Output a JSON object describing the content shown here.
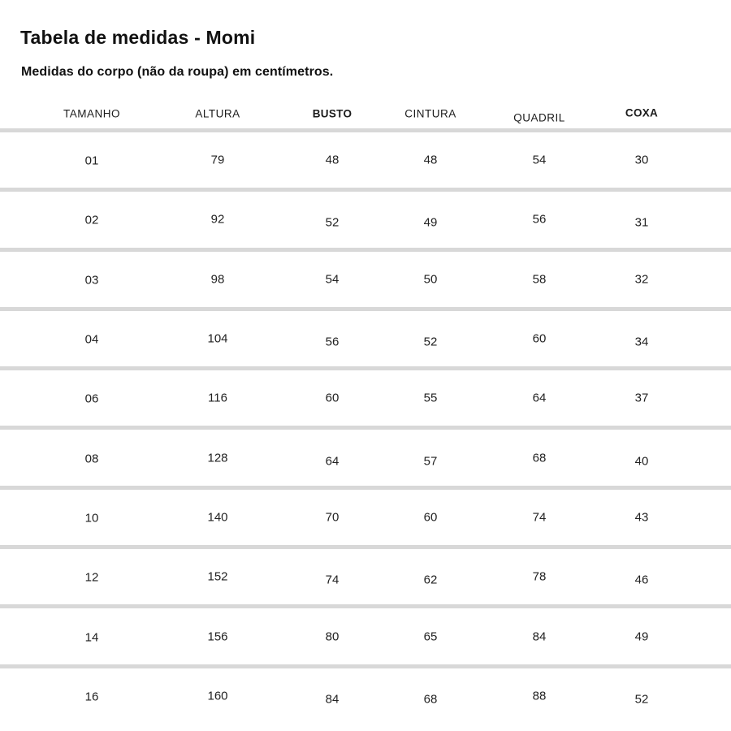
{
  "page": {
    "title": "Tabela de medidas - Momi",
    "subtitle": "Medidas do corpo (não da roupa) em centímetros."
  },
  "table": {
    "columns": [
      "TAMANHO",
      "ALTURA",
      "BUSTO",
      "CINTURA",
      "QUADRIL",
      "COXA"
    ],
    "rows": [
      [
        "01",
        "79",
        "48",
        "48",
        "54",
        "30"
      ],
      [
        "02",
        "92",
        "52",
        "49",
        "56",
        "31"
      ],
      [
        "03",
        "98",
        "54",
        "50",
        "58",
        "32"
      ],
      [
        "04",
        "104",
        "56",
        "52",
        "60",
        "34"
      ],
      [
        "06",
        "116",
        "60",
        "55",
        "64",
        "37"
      ],
      [
        "08",
        "128",
        "64",
        "57",
        "68",
        "40"
      ],
      [
        "10",
        "140",
        "70",
        "60",
        "74",
        "43"
      ],
      [
        "12",
        "152",
        "74",
        "62",
        "78",
        "46"
      ],
      [
        "14",
        "156",
        "80",
        "65",
        "84",
        "49"
      ],
      [
        "16",
        "160",
        "84",
        "68",
        "88",
        "52"
      ]
    ]
  },
  "colors": {
    "divider": "#d8d8d8",
    "text": "#1a1a1a",
    "background": "#ffffff"
  }
}
